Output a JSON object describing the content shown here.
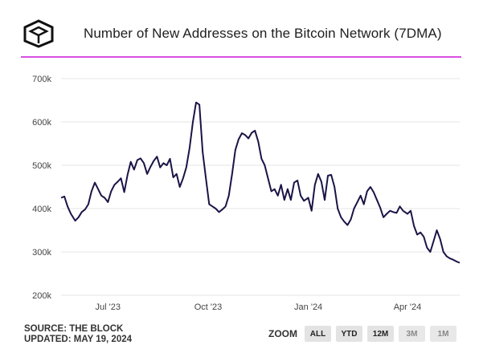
{
  "header": {
    "title": "Number of New Addresses on the Bitcoin Network (7DMA)"
  },
  "footer": {
    "source": "SOURCE: THE BLOCK",
    "updated": "UPDATED: MAY 19, 2024"
  },
  "zoom": {
    "label": "ZOOM",
    "buttons": [
      "ALL",
      "YTD",
      "12M",
      "3M",
      "1M"
    ]
  },
  "colors": {
    "accent": "#d84fe0",
    "line": "#1a1446",
    "grid": "#e4e4e4"
  },
  "chart_data": {
    "type": "line",
    "title": "Number of New Addresses on the Bitcoin Network (7DMA)",
    "xlabel": "",
    "ylabel": "",
    "ylim": [
      200000,
      700000
    ],
    "yticks": [
      200000,
      300000,
      400000,
      500000,
      600000,
      700000
    ],
    "ytick_labels": [
      "200k",
      "300k",
      "400k",
      "500k",
      "600k",
      "700k"
    ],
    "xlim": [
      "2023-05-19",
      "2024-05-19"
    ],
    "xticks": [
      "2023-07-01",
      "2023-10-01",
      "2024-01-01",
      "2024-04-01"
    ],
    "xtick_labels": [
      "Jul '23",
      "Oct '23",
      "Jan '24",
      "Apr '24"
    ],
    "grid": true,
    "series": [
      {
        "x": [
          "2023-05-19",
          "2023-05-22",
          "2023-05-25",
          "2023-05-28",
          "2023-06-01",
          "2023-06-04",
          "2023-06-07",
          "2023-06-10",
          "2023-06-13",
          "2023-06-16",
          "2023-06-19",
          "2023-06-22",
          "2023-06-25",
          "2023-06-28",
          "2023-07-01",
          "2023-07-04",
          "2023-07-07",
          "2023-07-10",
          "2023-07-13",
          "2023-07-16",
          "2023-07-19",
          "2023-07-22",
          "2023-07-25",
          "2023-07-28",
          "2023-07-31",
          "2023-08-03",
          "2023-08-06",
          "2023-08-09",
          "2023-08-12",
          "2023-08-15",
          "2023-08-18",
          "2023-08-21",
          "2023-08-24",
          "2023-08-27",
          "2023-08-30",
          "2023-09-02",
          "2023-09-05",
          "2023-09-08",
          "2023-09-11",
          "2023-09-14",
          "2023-09-17",
          "2023-09-20",
          "2023-09-23",
          "2023-09-26",
          "2023-09-29",
          "2023-10-02",
          "2023-10-05",
          "2023-10-08",
          "2023-10-11",
          "2023-10-14",
          "2023-10-17",
          "2023-10-20",
          "2023-10-23",
          "2023-10-26",
          "2023-10-29",
          "2023-11-01",
          "2023-11-04",
          "2023-11-07",
          "2023-11-10",
          "2023-11-13",
          "2023-11-16",
          "2023-11-19",
          "2023-11-22",
          "2023-11-25",
          "2023-11-28",
          "2023-12-01",
          "2023-12-04",
          "2023-12-07",
          "2023-12-10",
          "2023-12-13",
          "2023-12-16",
          "2023-12-19",
          "2023-12-22",
          "2023-12-25",
          "2023-12-28",
          "2024-01-01",
          "2024-01-04",
          "2024-01-07",
          "2024-01-10",
          "2024-01-13",
          "2024-01-16",
          "2024-01-19",
          "2024-01-22",
          "2024-01-25",
          "2024-01-28",
          "2024-01-31",
          "2024-02-03",
          "2024-02-06",
          "2024-02-09",
          "2024-02-12",
          "2024-02-15",
          "2024-02-18",
          "2024-02-21",
          "2024-02-24",
          "2024-02-27",
          "2024-03-01",
          "2024-03-04",
          "2024-03-07",
          "2024-03-10",
          "2024-03-13",
          "2024-03-16",
          "2024-03-19",
          "2024-03-22",
          "2024-03-25",
          "2024-03-28",
          "2024-04-01",
          "2024-04-04",
          "2024-04-07",
          "2024-04-10",
          "2024-04-13",
          "2024-04-16",
          "2024-04-19",
          "2024-04-22",
          "2024-04-25",
          "2024-04-28",
          "2024-05-01",
          "2024-05-04",
          "2024-05-07",
          "2024-05-10",
          "2024-05-13",
          "2024-05-16",
          "2024-05-19"
        ],
        "values": [
          425000,
          428000,
          405000,
          388000,
          372000,
          380000,
          392000,
          398000,
          410000,
          440000,
          460000,
          445000,
          430000,
          425000,
          415000,
          440000,
          455000,
          462000,
          470000,
          438000,
          478000,
          508000,
          490000,
          512000,
          516000,
          505000,
          480000,
          496000,
          510000,
          520000,
          495000,
          505000,
          500000,
          515000,
          472000,
          480000,
          450000,
          470000,
          495000,
          540000,
          600000,
          645000,
          640000,
          530000,
          470000,
          410000,
          405000,
          400000,
          392000,
          398000,
          405000,
          430000,
          480000,
          535000,
          560000,
          574000,
          570000,
          562000,
          575000,
          580000,
          555000,
          515000,
          500000,
          470000,
          440000,
          445000,
          430000,
          455000,
          420000,
          445000,
          420000,
          460000,
          465000,
          430000,
          418000,
          425000,
          395000,
          455000,
          480000,
          462000,
          420000,
          476000,
          478000,
          450000,
          400000,
          380000,
          370000,
          362000,
          375000,
          400000,
          415000,
          430000,
          410000,
          440000,
          450000,
          438000,
          420000,
          402000,
          380000,
          388000,
          395000,
          392000,
          390000,
          405000,
          395000,
          388000,
          395000,
          360000,
          340000,
          345000,
          335000,
          310000,
          300000,
          325000,
          350000,
          330000,
          300000,
          290000,
          285000,
          282000,
          278000,
          275000
        ],
        "color": "#1a1446"
      }
    ]
  }
}
